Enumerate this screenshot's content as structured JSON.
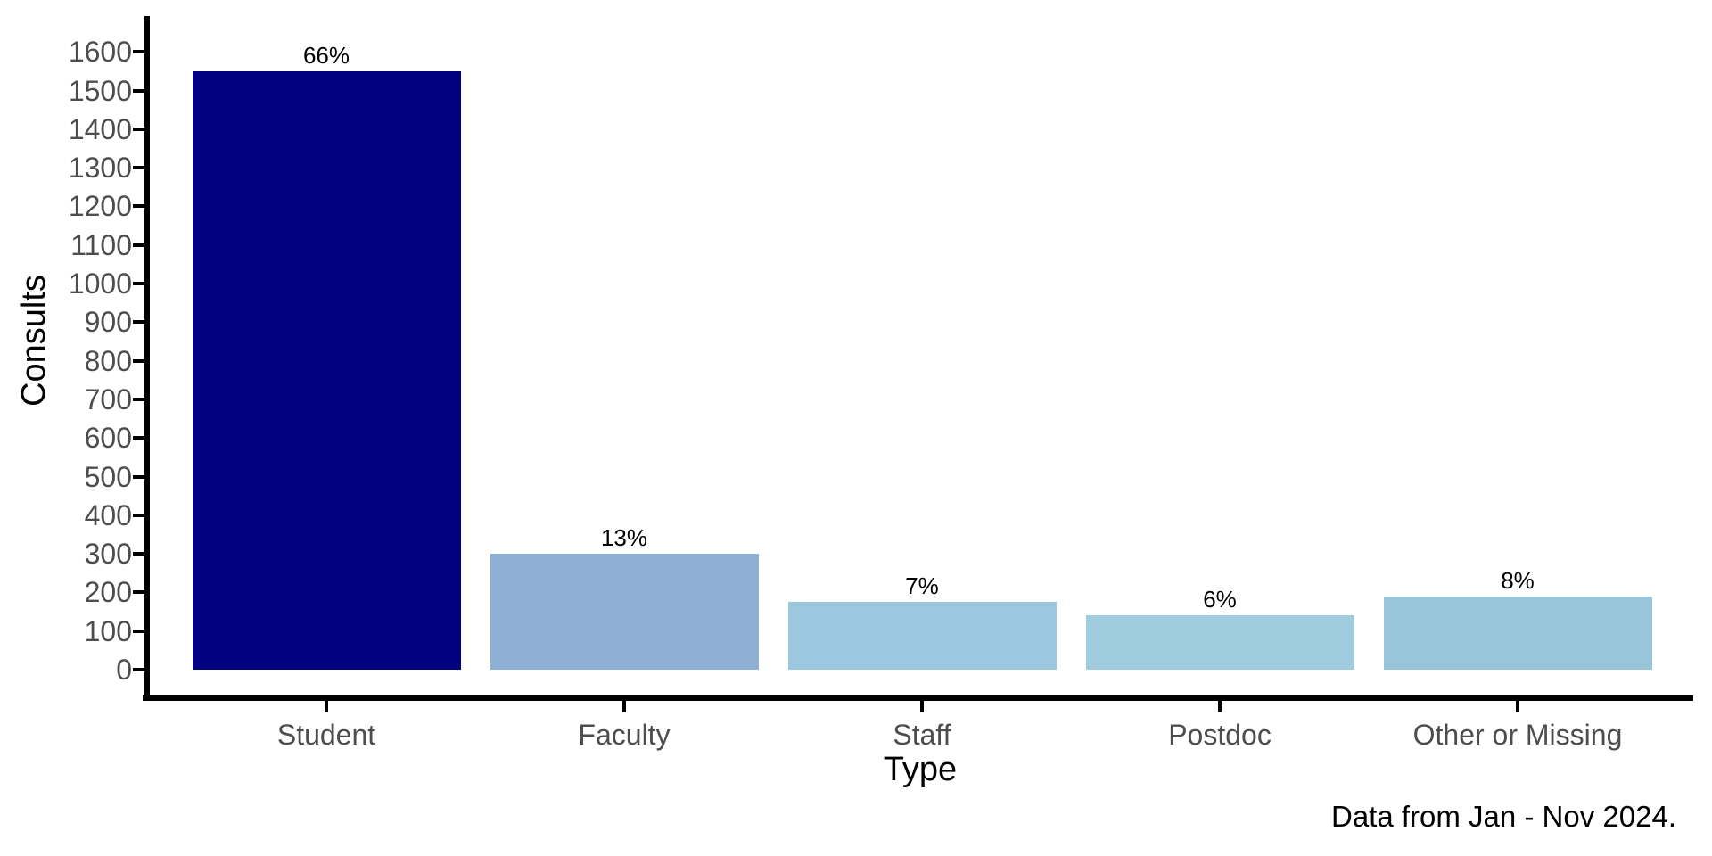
{
  "chart_data": {
    "type": "bar",
    "title": "",
    "xlabel": "Type",
    "ylabel": "Consults",
    "categories": [
      "Student",
      "Faculty",
      "Staff",
      "Postdoc",
      "Other or Missing"
    ],
    "values": [
      1550,
      300,
      175,
      140,
      190
    ],
    "bar_labels": [
      "66%",
      "13%",
      "7%",
      "6%",
      "8%"
    ],
    "bar_colors": [
      "#000080",
      "#8DB0D4",
      "#9BC8DE",
      "#A0CCE0",
      "#99C5DB"
    ],
    "yticks": [
      0,
      100,
      200,
      300,
      400,
      500,
      600,
      700,
      800,
      900,
      1000,
      1100,
      1200,
      1300,
      1400,
      1500,
      1600
    ],
    "ylim": [
      0,
      1600
    ],
    "grid": false,
    "legend": "none",
    "caption": "Data from Jan - Nov 2024.",
    "style": {
      "axis_color": "#000000",
      "tick_label_color": "#4D4D4D",
      "axis_title_color": "#000000",
      "label_color": "#000000",
      "background": "#FFFFFF"
    }
  }
}
